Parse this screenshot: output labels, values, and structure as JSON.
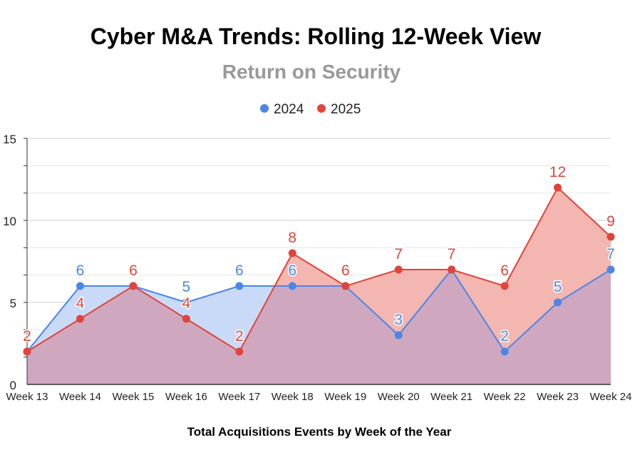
{
  "chart_data": {
    "type": "area",
    "title": "Cyber M&A Trends: Rolling 12-Week View",
    "subtitle": "Return on Security",
    "xlabel": "Total Acquisitions Events by Week of the Year",
    "ylabel": "",
    "categories": [
      "Week 13",
      "Week 14",
      "Week 15",
      "Week 16",
      "Week 17",
      "Week 18",
      "Week 19",
      "Week 20",
      "Week 21",
      "Week 22",
      "Week 23",
      "Week 24"
    ],
    "series": [
      {
        "name": "2024",
        "values": [
          2,
          6,
          6,
          5,
          6,
          6,
          6,
          3,
          7,
          2,
          5,
          7
        ],
        "color": "#4a86e8",
        "fill": "#c9daf8"
      },
      {
        "name": "2025",
        "values": [
          2,
          4,
          6,
          4,
          2,
          8,
          6,
          7,
          7,
          6,
          12,
          9
        ],
        "color": "#e0443a",
        "fill": "#f4b6b0"
      }
    ],
    "overlap_fill": "#cfa8bf",
    "ylim": [
      0,
      15
    ],
    "yticks": [
      0,
      5,
      10,
      15
    ],
    "grid": true,
    "legend": "top-center",
    "data_labels": true
  }
}
